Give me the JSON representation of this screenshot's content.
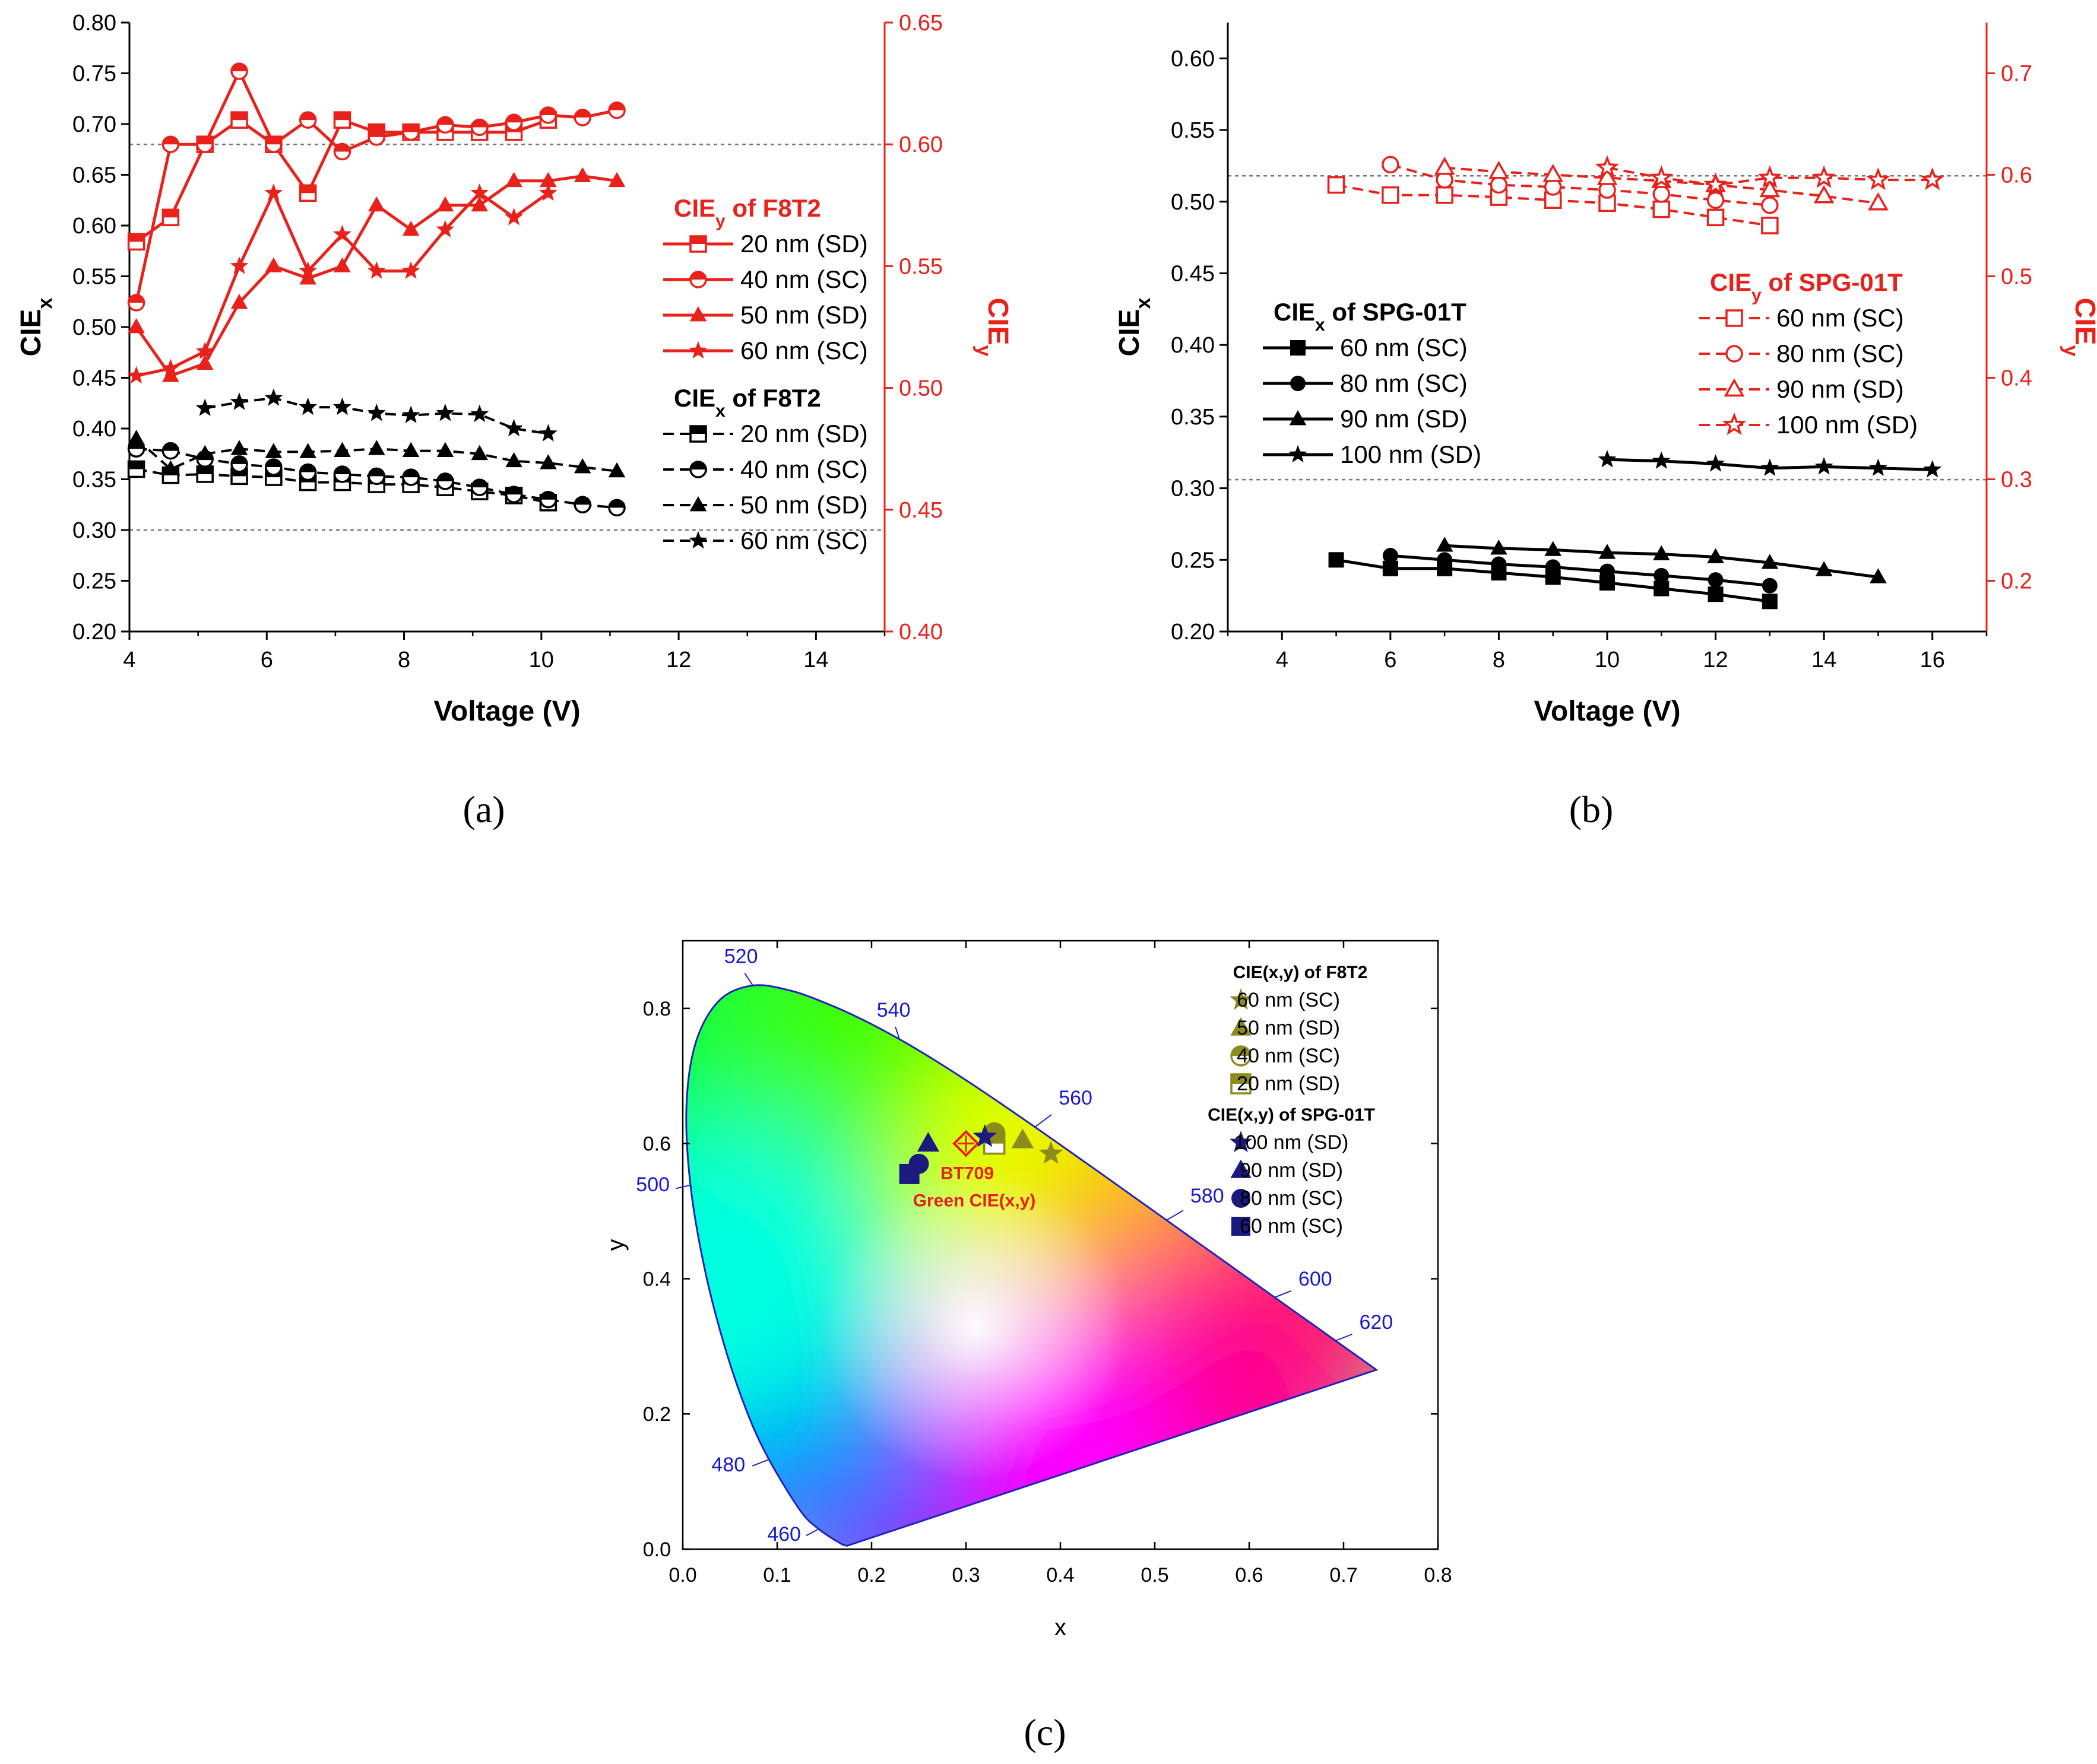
{
  "panel_labels": {
    "a": "(a)",
    "b": "(b)",
    "c": "(c)"
  },
  "chart_data": [
    {
      "panel": "a",
      "type": "line",
      "xlabel": "Voltage (V)",
      "ylabel_left": "CIEx",
      "ylabel_right": "CIEy",
      "xlim": [
        4,
        15
      ],
      "ylim_left": [
        0.2,
        0.8
      ],
      "ylim_right": [
        0.4,
        0.65
      ],
      "xticks": [
        "4",
        "6",
        "8",
        "10",
        "12",
        "14"
      ],
      "yticks_left": [
        "0.20",
        "0.25",
        "0.30",
        "0.35",
        "0.40",
        "0.45",
        "0.50",
        "0.55",
        "0.60",
        "0.65",
        "0.70",
        "0.75",
        "0.80"
      ],
      "yticks_right": [
        "0.40",
        "0.45",
        "0.50",
        "0.55",
        "0.60",
        "0.65"
      ],
      "ref_lines_left": [
        0.68,
        0.3
      ],
      "legend_y_title": "CIEy of F8T2",
      "legend_x_title": "CIEx of F8T2",
      "series_y": [
        {
          "name": "20 nm (SD)",
          "marker": "square-top",
          "x": [
            4.1,
            4.6,
            5.1,
            5.6,
            6.1,
            6.6,
            7.1,
            7.6,
            8.1,
            8.6,
            9.1,
            9.6,
            10.1
          ],
          "values": [
            0.56,
            0.57,
            0.6,
            0.61,
            0.6,
            0.58,
            0.61,
            0.605,
            0.605,
            0.605,
            0.605,
            0.605,
            0.61
          ]
        },
        {
          "name": "40 nm (SC)",
          "marker": "circle-top",
          "x": [
            4.1,
            4.6,
            5.1,
            5.6,
            6.1,
            6.6,
            7.1,
            7.6,
            8.1,
            8.6,
            9.1,
            9.6,
            10.1,
            10.6,
            11.1
          ],
          "values": [
            0.535,
            0.6,
            0.6,
            0.63,
            0.6,
            0.61,
            0.597,
            0.603,
            0.605,
            0.608,
            0.607,
            0.609,
            0.612,
            0.611,
            0.614
          ]
        },
        {
          "name": "50 nm (SD)",
          "marker": "triangle",
          "x": [
            4.1,
            4.6,
            5.1,
            5.6,
            6.1,
            6.6,
            7.1,
            7.6,
            8.1,
            8.6,
            9.1,
            9.6,
            10.1,
            10.6,
            11.1
          ],
          "values": [
            0.525,
            0.505,
            0.51,
            0.535,
            0.55,
            0.545,
            0.55,
            0.575,
            0.565,
            0.575,
            0.575,
            0.585,
            0.585,
            0.587,
            0.585
          ]
        },
        {
          "name": "60 nm (SC)",
          "marker": "star",
          "x": [
            4.1,
            4.6,
            5.1,
            5.6,
            6.1,
            6.6,
            7.1,
            7.6,
            8.1,
            8.6,
            9.1,
            9.6,
            10.1
          ],
          "values": [
            0.505,
            0.508,
            0.515,
            0.55,
            0.58,
            0.548,
            0.563,
            0.548,
            0.548,
            0.565,
            0.58,
            0.57,
            0.58
          ]
        }
      ],
      "series_x": [
        {
          "name": "20 nm (SD)",
          "marker": "square-top",
          "x": [
            4.1,
            4.6,
            5.1,
            5.6,
            6.1,
            6.6,
            7.1,
            7.6,
            8.1,
            8.6,
            9.1,
            9.6,
            10.1
          ],
          "values": [
            0.36,
            0.354,
            0.355,
            0.353,
            0.352,
            0.347,
            0.347,
            0.345,
            0.345,
            0.342,
            0.338,
            0.334,
            0.327
          ]
        },
        {
          "name": "40 nm (SC)",
          "marker": "circle-top",
          "x": [
            4.1,
            4.6,
            5.1,
            5.6,
            6.1,
            6.6,
            7.1,
            7.6,
            8.1,
            8.6,
            9.1,
            9.6,
            10.1,
            10.6,
            11.1
          ],
          "values": [
            0.38,
            0.378,
            0.37,
            0.365,
            0.362,
            0.357,
            0.355,
            0.353,
            0.352,
            0.348,
            0.342,
            0.335,
            0.33,
            0.325,
            0.322
          ]
        },
        {
          "name": "50 nm (SD)",
          "marker": "triangle",
          "x": [
            4.1,
            4.6,
            5.1,
            5.6,
            6.1,
            6.6,
            7.1,
            7.6,
            8.1,
            8.6,
            9.1,
            9.6,
            10.1,
            10.6,
            11.1
          ],
          "values": [
            0.39,
            0.36,
            0.375,
            0.38,
            0.377,
            0.377,
            0.378,
            0.38,
            0.378,
            0.378,
            0.375,
            0.368,
            0.366,
            0.362,
            0.358
          ]
        },
        {
          "name": "60 nm (SC)",
          "marker": "star",
          "x": [
            5.1,
            5.6,
            6.1,
            6.6,
            7.1,
            7.6,
            8.1,
            8.6,
            9.1,
            9.6,
            10.1
          ],
          "values": [
            0.42,
            0.426,
            0.43,
            0.421,
            0.421,
            0.415,
            0.413,
            0.415,
            0.414,
            0.4,
            0.395
          ]
        }
      ]
    },
    {
      "panel": "b",
      "type": "line",
      "xlabel": "Voltage (V)",
      "ylabel_left": "CIEx",
      "ylabel_right": "CIEy",
      "xlim": [
        3,
        17
      ],
      "ylim_left": [
        0.2,
        0.625
      ],
      "ylim_right": [
        0.15,
        0.75
      ],
      "xticks": [
        "4",
        "6",
        "8",
        "10",
        "12",
        "14",
        "16"
      ],
      "yticks_left": [
        "0.20",
        "0.25",
        "0.30",
        "0.35",
        "0.40",
        "0.45",
        "0.50",
        "0.55",
        "0.60"
      ],
      "yticks_right": [
        "0.2",
        "0.3",
        "0.4",
        "0.5",
        "0.6",
        "0.7"
      ],
      "ref_lines_left": [
        0.518,
        0.306
      ],
      "legend_x_title": "CIEx of SPG-01T",
      "legend_y_title": "CIEy of SPG-01T",
      "series_x": [
        {
          "name": "60 nm (SC)",
          "marker": "square",
          "x": [
            5,
            6,
            7,
            8,
            9,
            10,
            11,
            12,
            13
          ],
          "values": [
            0.25,
            0.244,
            0.244,
            0.241,
            0.238,
            0.234,
            0.23,
            0.226,
            0.221
          ]
        },
        {
          "name": "80 nm (SC)",
          "marker": "circle",
          "x": [
            6,
            7,
            8,
            9,
            10,
            11,
            12,
            13
          ],
          "values": [
            0.253,
            0.25,
            0.247,
            0.245,
            0.242,
            0.239,
            0.236,
            0.232
          ]
        },
        {
          "name": "90 nm (SD)",
          "marker": "triangle",
          "x": [
            7,
            8,
            9,
            10,
            11,
            12,
            13,
            14,
            15
          ],
          "values": [
            0.26,
            0.258,
            0.257,
            0.255,
            0.254,
            0.252,
            0.248,
            0.243,
            0.238
          ]
        },
        {
          "name": "100 nm (SD)",
          "marker": "star",
          "x": [
            10,
            11,
            12,
            13,
            14,
            15,
            16
          ],
          "values": [
            0.32,
            0.319,
            0.317,
            0.314,
            0.315,
            0.314,
            0.313
          ]
        }
      ],
      "series_y": [
        {
          "name": "60 nm (SC)",
          "marker": "square-open",
          "x": [
            5,
            6,
            7,
            8,
            9,
            10,
            11,
            12,
            13
          ],
          "values": [
            0.59,
            0.58,
            0.58,
            0.578,
            0.575,
            0.572,
            0.566,
            0.558,
            0.55
          ]
        },
        {
          "name": "80 nm (SC)",
          "marker": "circle-open",
          "x": [
            6,
            7,
            8,
            9,
            10,
            11,
            12,
            13
          ],
          "values": [
            0.61,
            0.595,
            0.59,
            0.588,
            0.585,
            0.581,
            0.575,
            0.57
          ]
        },
        {
          "name": "90 nm (SD)",
          "marker": "triangle-open",
          "x": [
            7,
            8,
            9,
            10,
            11,
            12,
            13,
            14,
            15
          ],
          "values": [
            0.607,
            0.603,
            0.6,
            0.597,
            0.594,
            0.59,
            0.585,
            0.579,
            0.572
          ]
        },
        {
          "name": "100 nm (SD)",
          "marker": "star-open",
          "x": [
            10,
            11,
            12,
            13,
            14,
            15,
            16
          ],
          "values": [
            0.607,
            0.597,
            0.59,
            0.597,
            0.597,
            0.595,
            0.595
          ]
        }
      ]
    },
    {
      "panel": "c",
      "type": "scatter",
      "xlabel": "x",
      "ylabel": "y",
      "xlim": [
        0,
        0.8
      ],
      "ylim": [
        0,
        0.9
      ],
      "xticks": [
        "0.0",
        "0.1",
        "0.2",
        "0.3",
        "0.4",
        "0.5",
        "0.6",
        "0.7",
        "0.8"
      ],
      "yticks": [
        "0.0",
        "0.2",
        "0.4",
        "0.6",
        "0.8"
      ],
      "locus": [
        [
          0.1741,
          0.005
        ],
        [
          0.1666,
          0.0089
        ],
        [
          0.144,
          0.0297
        ],
        [
          0.1241,
          0.0578
        ],
        [
          0.0913,
          0.1327
        ],
        [
          0.0687,
          0.2007
        ],
        [
          0.0454,
          0.295
        ],
        [
          0.0235,
          0.4127
        ],
        [
          0.0082,
          0.5384
        ],
        [
          0.0039,
          0.6548
        ],
        [
          0.0139,
          0.7502
        ],
        [
          0.0389,
          0.812
        ],
        [
          0.0743,
          0.8338
        ],
        [
          0.1142,
          0.8262
        ],
        [
          0.1547,
          0.8059
        ],
        [
          0.1929,
          0.7816
        ],
        [
          0.2296,
          0.7543
        ],
        [
          0.2658,
          0.7243
        ],
        [
          0.3016,
          0.6923
        ],
        [
          0.3373,
          0.6589
        ],
        [
          0.3731,
          0.6245
        ],
        [
          0.4087,
          0.5896
        ],
        [
          0.4441,
          0.5547
        ],
        [
          0.4788,
          0.5202
        ],
        [
          0.5125,
          0.4866
        ],
        [
          0.5448,
          0.4544
        ],
        [
          0.5752,
          0.4242
        ],
        [
          0.6029,
          0.3965
        ],
        [
          0.627,
          0.3725
        ],
        [
          0.6482,
          0.3514
        ],
        [
          0.6658,
          0.334
        ],
        [
          0.6915,
          0.3083
        ],
        [
          0.7147,
          0.2853
        ],
        [
          0.7347,
          0.2653
        ]
      ],
      "wavelength_labels": [
        {
          "label": "520",
          "x": 0.0743,
          "y": 0.8338
        },
        {
          "label": "540",
          "x": 0.2296,
          "y": 0.7543
        },
        {
          "label": "560",
          "x": 0.3731,
          "y": 0.6245
        },
        {
          "label": "580",
          "x": 0.5125,
          "y": 0.4866
        },
        {
          "label": "600",
          "x": 0.627,
          "y": 0.3725
        },
        {
          "label": "620",
          "x": 0.6915,
          "y": 0.3083
        },
        {
          "label": "500",
          "x": 0.0082,
          "y": 0.5384
        },
        {
          "label": "480",
          "x": 0.0913,
          "y": 0.1327
        },
        {
          "label": "460",
          "x": 0.144,
          "y": 0.0297
        }
      ],
      "legend_f8t2_title": "CIE(x,y) of F8T2",
      "legend_spg_title": "CIE(x,y) of SPG-01T",
      "points_f8t2": [
        {
          "name": "60 nm (SC)",
          "marker": "star",
          "x": 0.39,
          "y": 0.585
        },
        {
          "name": "50 nm (SD)",
          "marker": "triangle",
          "x": 0.36,
          "y": 0.605
        },
        {
          "name": "40 nm (SC)",
          "marker": "circle-top",
          "x": 0.33,
          "y": 0.615
        },
        {
          "name": "20 nm (SD)",
          "marker": "square-top",
          "x": 0.33,
          "y": 0.6
        }
      ],
      "points_spg": [
        {
          "name": "100 nm (SD)",
          "marker": "star",
          "x": 0.32,
          "y": 0.61
        },
        {
          "name": "90 nm (SD)",
          "marker": "triangle",
          "x": 0.26,
          "y": 0.6
        },
        {
          "name": "80 nm (SC)",
          "marker": "circle",
          "x": 0.25,
          "y": 0.57
        },
        {
          "name": "60 nm (SC)",
          "marker": "square",
          "x": 0.24,
          "y": 0.555
        }
      ],
      "reference_point": {
        "label1": "BT709",
        "label2": "Green CIE(x,y)",
        "x": 0.3,
        "y": 0.6
      }
    }
  ],
  "colors": {
    "red": "#e8211b",
    "black": "#000000",
    "olive": "#8c8c1c",
    "navy": "#1a1a80",
    "locus": "#2222bb"
  }
}
